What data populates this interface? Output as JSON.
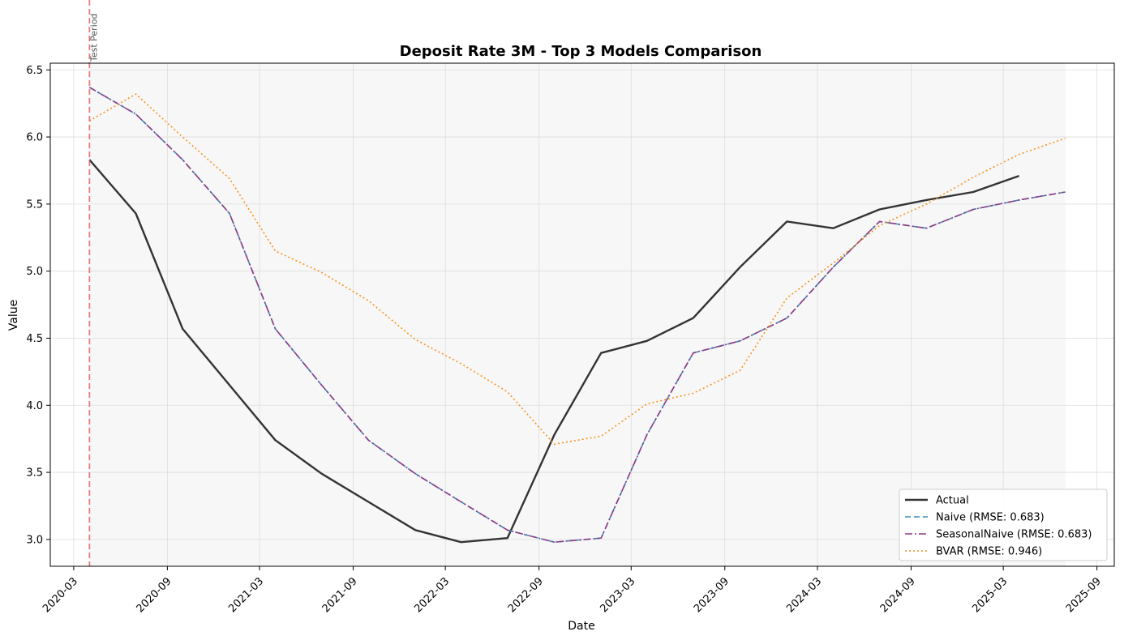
{
  "chart_data": {
    "type": "line",
    "title": "Deposit Rate 3M - Top 3 Models Comparison",
    "xlabel": "Date",
    "ylabel": "Value",
    "x_ticks": [
      "2020-03",
      "2020-09",
      "2021-03",
      "2021-09",
      "2022-03",
      "2022-09",
      "2023-03",
      "2023-09",
      "2024-03",
      "2024-09",
      "2025-03",
      "2025-09"
    ],
    "y_ticks": [
      "3.0",
      "3.5",
      "4.0",
      "4.5",
      "5.0",
      "5.5",
      "6.0",
      "6.5"
    ],
    "ylim": [
      2.8,
      6.55
    ],
    "xlim": [
      "2020-01-15",
      "2025-10-05"
    ],
    "grid": true,
    "legend_position": "lower-right",
    "annotation": {
      "label": "Test Period",
      "x": "2020-04-01",
      "color": "#e06666"
    },
    "test_period": {
      "start": "2020-04-01",
      "end": "2025-07-01"
    },
    "x": [
      "2020-04-01",
      "2020-07-01",
      "2020-10-01",
      "2021-01-01",
      "2021-04-01",
      "2021-07-01",
      "2021-10-01",
      "2022-01-01",
      "2022-04-01",
      "2022-07-01",
      "2022-10-01",
      "2023-01-01",
      "2023-04-01",
      "2023-07-01",
      "2023-10-01",
      "2024-01-01",
      "2024-04-01",
      "2024-07-01",
      "2024-10-01",
      "2025-01-01",
      "2025-04-01",
      "2025-07-01"
    ],
    "series": [
      {
        "name": "Actual",
        "color": "#333333",
        "style": "solid",
        "values": [
          5.83,
          5.43,
          4.57,
          4.15,
          3.74,
          3.49,
          3.28,
          3.07,
          2.98,
          3.01,
          3.78,
          4.39,
          4.48,
          4.65,
          5.03,
          5.37,
          5.32,
          5.46,
          5.53,
          5.59,
          5.71,
          null
        ]
      },
      {
        "name": "Naive (RMSE: 0.683)",
        "color": "#3a8fb7",
        "style": "dashed",
        "values": [
          6.37,
          6.17,
          5.83,
          5.43,
          4.57,
          4.15,
          3.74,
          3.49,
          3.28,
          3.07,
          2.98,
          3.01,
          3.78,
          4.39,
          4.48,
          4.65,
          5.03,
          5.37,
          5.32,
          5.46,
          5.53,
          5.59
        ]
      },
      {
        "name": "SeasonalNaive (RMSE: 0.683)",
        "color": "#8e3a86",
        "style": "dashdot",
        "values": [
          6.37,
          6.17,
          5.83,
          5.43,
          4.57,
          4.15,
          3.74,
          3.49,
          3.28,
          3.07,
          2.98,
          3.01,
          3.78,
          4.39,
          4.48,
          4.65,
          5.03,
          5.37,
          5.32,
          5.46,
          5.53,
          5.59
        ]
      },
      {
        "name": "BVAR (RMSE: 0.946)",
        "color": "#f5941d",
        "style": "dotted",
        "values": [
          6.12,
          6.32,
          6.0,
          5.69,
          5.15,
          4.99,
          4.78,
          4.49,
          4.31,
          4.1,
          3.71,
          3.77,
          4.01,
          4.09,
          4.26,
          4.8,
          5.06,
          5.34,
          5.5,
          5.7,
          5.87,
          5.99
        ]
      }
    ]
  }
}
